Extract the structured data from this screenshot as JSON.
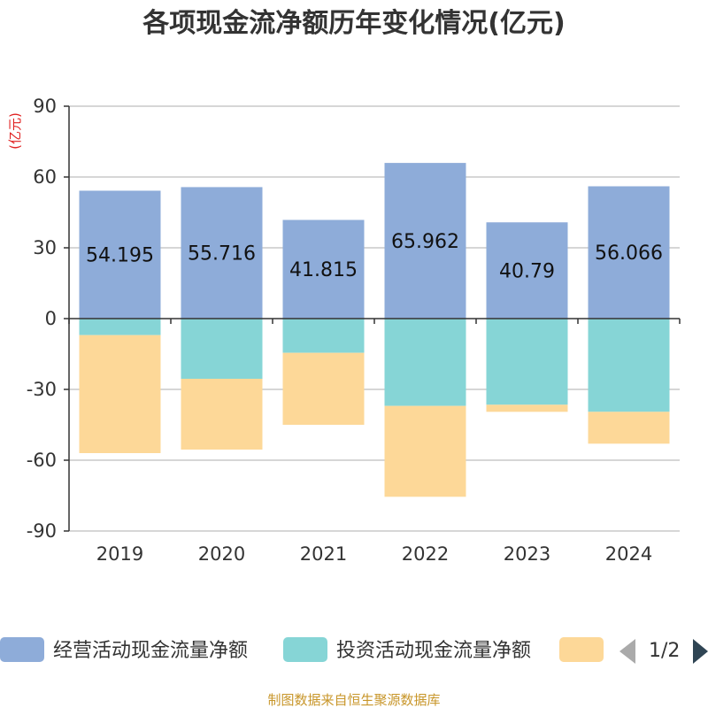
{
  "chart_data": {
    "type": "bar",
    "stacked": true,
    "title": "各项现金流净额历年变化情况(亿元)",
    "unit_label": "(亿元)",
    "categories": [
      "2019",
      "2020",
      "2021",
      "2022",
      "2023",
      "2024"
    ],
    "ylim": [
      -90,
      90
    ],
    "yticks": [
      -90,
      -60,
      -30,
      0,
      30,
      60,
      90
    ],
    "grid": true,
    "series": [
      {
        "name": "经营活动现金流量净额",
        "color": "#8eacd9",
        "values": [
          54.195,
          55.716,
          41.815,
          65.962,
          40.79,
          56.066
        ],
        "labels": [
          "54.195",
          "55.716",
          "41.815",
          "65.962",
          "40.79",
          "56.066"
        ]
      },
      {
        "name": "投资活动现金流量净额",
        "color": "#86d5d6",
        "values": [
          -7,
          -25.5,
          -14.5,
          -37,
          -36.5,
          -39.5
        ]
      },
      {
        "name": "",
        "color": "#fdd898",
        "values": [
          -50,
          -30,
          -30.5,
          -38.5,
          -3,
          -13.5
        ]
      }
    ],
    "legend": {
      "page": "1/2",
      "position": "bottom"
    },
    "source": "制图数据来自恒生聚源数据库"
  }
}
